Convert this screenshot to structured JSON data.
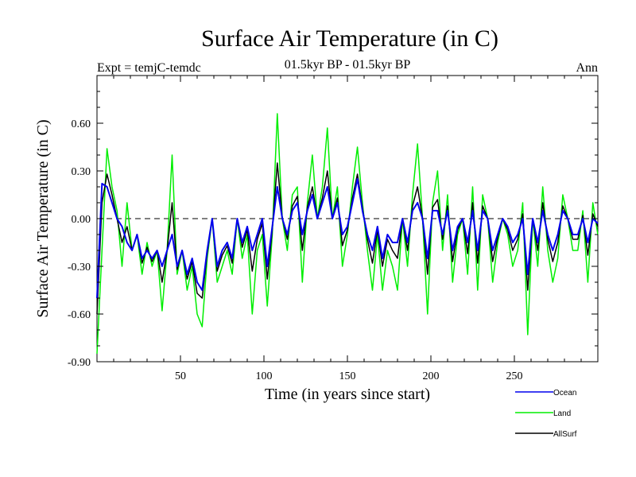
{
  "chart_data": {
    "type": "line",
    "title": "Surface Air Temperature (in C)",
    "subtitle_left": "Expt = temjC-temdc",
    "subtitle_center": "01.5kyr BP - 01.5kyr BP",
    "subtitle_right": "Ann",
    "xlabel": "Time (in years since start)",
    "ylabel": "Surface Air Temperature (in C)",
    "xlim": [
      0,
      300
    ],
    "ylim": [
      -0.9,
      0.9
    ],
    "x_ticks": [
      50,
      100,
      150,
      200,
      250
    ],
    "x_tick_labels": [
      "50",
      "100",
      "150",
      "200",
      "250"
    ],
    "y_ticks": [
      -0.9,
      -0.6,
      -0.3,
      0.0,
      0.3,
      0.6
    ],
    "y_tick_labels": [
      "-0.90",
      "-0.60",
      "-0.30",
      "0.00",
      "0.30",
      "0.60"
    ],
    "zero_line": true,
    "legend_position": "bottom-right",
    "series": [
      {
        "name": "Land",
        "color": "#00ee00",
        "x": [
          0,
          3,
          6,
          9,
          12,
          15,
          18,
          21,
          24,
          27,
          30,
          33,
          36,
          39,
          42,
          45,
          48,
          51,
          54,
          57,
          60,
          63,
          66,
          69,
          72,
          75,
          78,
          81,
          84,
          87,
          90,
          93,
          96,
          99,
          102,
          105,
          108,
          111,
          114,
          117,
          120,
          123,
          126,
          129,
          132,
          135,
          138,
          141,
          144,
          147,
          150,
          153,
          156,
          159,
          162,
          165,
          168,
          171,
          174,
          177,
          180,
          183,
          186,
          189,
          192,
          195,
          198,
          201,
          204,
          207,
          210,
          213,
          216,
          219,
          222,
          225,
          228,
          231,
          234,
          237,
          240,
          243,
          246,
          249,
          252,
          255,
          258,
          261,
          264,
          267,
          270,
          273,
          276,
          279,
          282,
          285,
          288,
          291,
          294,
          297,
          300
        ],
        "values": [
          -0.85,
          -0.2,
          0.44,
          0.2,
          0.05,
          -0.3,
          0.1,
          -0.2,
          -0.1,
          -0.35,
          -0.15,
          -0.3,
          -0.2,
          -0.58,
          -0.2,
          0.4,
          -0.35,
          -0.2,
          -0.45,
          -0.3,
          -0.6,
          -0.68,
          -0.25,
          0.0,
          -0.4,
          -0.3,
          -0.2,
          -0.35,
          0.0,
          -0.25,
          -0.1,
          -0.6,
          -0.2,
          -0.1,
          -0.55,
          -0.1,
          0.66,
          0.0,
          -0.2,
          0.15,
          0.2,
          -0.4,
          0.1,
          0.4,
          0.0,
          0.2,
          0.57,
          0.0,
          0.2,
          -0.3,
          -0.1,
          0.2,
          0.45,
          0.1,
          -0.2,
          -0.45,
          -0.1,
          -0.45,
          -0.2,
          -0.3,
          -0.45,
          0.0,
          -0.3,
          0.15,
          0.47,
          0.0,
          -0.6,
          0.1,
          0.3,
          -0.2,
          0.15,
          -0.4,
          -0.1,
          0.0,
          -0.35,
          0.2,
          -0.45,
          0.15,
          0.0,
          -0.4,
          -0.15,
          0.0,
          -0.1,
          -0.3,
          -0.2,
          0.1,
          -0.73,
          0.0,
          -0.3,
          0.2,
          -0.2,
          -0.4,
          -0.25,
          0.15,
          0.0,
          -0.2,
          -0.2,
          0.05,
          -0.4,
          0.1,
          -0.1
        ]
      },
      {
        "name": "Ocean",
        "color": "#0000ee",
        "x": [
          0,
          3,
          6,
          9,
          12,
          15,
          18,
          21,
          24,
          27,
          30,
          33,
          36,
          39,
          42,
          45,
          48,
          51,
          54,
          57,
          60,
          63,
          66,
          69,
          72,
          75,
          78,
          81,
          84,
          87,
          90,
          93,
          96,
          99,
          102,
          105,
          108,
          111,
          114,
          117,
          120,
          123,
          126,
          129,
          132,
          135,
          138,
          141,
          144,
          147,
          150,
          153,
          156,
          159,
          162,
          165,
          168,
          171,
          174,
          177,
          180,
          183,
          186,
          189,
          192,
          195,
          198,
          201,
          204,
          207,
          210,
          213,
          216,
          219,
          222,
          225,
          228,
          231,
          234,
          237,
          240,
          243,
          246,
          249,
          252,
          255,
          258,
          261,
          264,
          267,
          270,
          273,
          276,
          279,
          282,
          285,
          288,
          291,
          294,
          297,
          300
        ],
        "values": [
          -0.5,
          0.22,
          0.2,
          0.1,
          0.0,
          -0.05,
          -0.15,
          -0.2,
          -0.1,
          -0.25,
          -0.2,
          -0.25,
          -0.2,
          -0.3,
          -0.2,
          -0.1,
          -0.3,
          -0.2,
          -0.35,
          -0.25,
          -0.4,
          -0.45,
          -0.2,
          0.0,
          -0.3,
          -0.2,
          -0.15,
          -0.25,
          0.0,
          -0.15,
          -0.05,
          -0.2,
          -0.1,
          0.0,
          -0.3,
          -0.05,
          0.2,
          0.0,
          -0.1,
          0.05,
          0.1,
          -0.1,
          0.05,
          0.15,
          0.0,
          0.1,
          0.2,
          0.0,
          0.1,
          -0.1,
          -0.05,
          0.1,
          0.25,
          0.05,
          -0.1,
          -0.2,
          -0.05,
          -0.25,
          -0.1,
          -0.15,
          -0.15,
          0.0,
          -0.15,
          0.05,
          0.1,
          0.0,
          -0.25,
          0.05,
          0.05,
          -0.1,
          0.05,
          -0.2,
          -0.05,
          0.0,
          -0.15,
          0.05,
          -0.2,
          0.05,
          0.0,
          -0.2,
          -0.1,
          0.0,
          -0.05,
          -0.15,
          -0.1,
          0.0,
          -0.35,
          0.0,
          -0.15,
          0.05,
          -0.1,
          -0.2,
          -0.1,
          0.05,
          0.0,
          -0.1,
          -0.1,
          0.0,
          -0.15,
          0.0,
          -0.03
        ]
      },
      {
        "name": "AllSurf",
        "color": "#000000",
        "x": [
          0,
          3,
          6,
          9,
          12,
          15,
          18,
          21,
          24,
          27,
          30,
          33,
          36,
          39,
          42,
          45,
          48,
          51,
          54,
          57,
          60,
          63,
          66,
          69,
          72,
          75,
          78,
          81,
          84,
          87,
          90,
          93,
          96,
          99,
          102,
          105,
          108,
          111,
          114,
          117,
          120,
          123,
          126,
          129,
          132,
          135,
          138,
          141,
          144,
          147,
          150,
          153,
          156,
          159,
          162,
          165,
          168,
          171,
          174,
          177,
          180,
          183,
          186,
          189,
          192,
          195,
          198,
          201,
          204,
          207,
          210,
          213,
          216,
          219,
          222,
          225,
          228,
          231,
          234,
          237,
          240,
          243,
          246,
          249,
          252,
          255,
          258,
          261,
          264,
          267,
          270,
          273,
          276,
          279,
          282,
          285,
          288,
          291,
          294,
          297,
          300
        ],
        "values": [
          -0.6,
          0.1,
          0.28,
          0.15,
          0.0,
          -0.15,
          -0.05,
          -0.2,
          -0.1,
          -0.28,
          -0.18,
          -0.27,
          -0.2,
          -0.4,
          -0.2,
          0.1,
          -0.32,
          -0.2,
          -0.38,
          -0.27,
          -0.47,
          -0.5,
          -0.22,
          0.0,
          -0.33,
          -0.23,
          -0.17,
          -0.28,
          0.0,
          -0.18,
          -0.07,
          -0.33,
          -0.13,
          -0.03,
          -0.38,
          -0.07,
          0.35,
          0.0,
          -0.13,
          0.08,
          0.14,
          -0.2,
          0.07,
          0.2,
          0.0,
          0.13,
          0.3,
          0.0,
          0.13,
          -0.17,
          -0.07,
          0.13,
          0.28,
          0.07,
          -0.13,
          -0.28,
          -0.07,
          -0.3,
          -0.13,
          -0.2,
          -0.25,
          0.0,
          -0.2,
          0.08,
          0.2,
          0.0,
          -0.35,
          0.07,
          0.12,
          -0.13,
          0.08,
          -0.27,
          -0.07,
          0.0,
          -0.22,
          0.1,
          -0.28,
          0.08,
          0.0,
          -0.27,
          -0.12,
          0.0,
          -0.07,
          -0.2,
          -0.13,
          0.03,
          -0.45,
          0.0,
          -0.2,
          0.1,
          -0.13,
          -0.27,
          -0.15,
          0.08,
          0.0,
          -0.13,
          -0.13,
          0.02,
          -0.23,
          0.03,
          -0.05
        ]
      }
    ]
  }
}
